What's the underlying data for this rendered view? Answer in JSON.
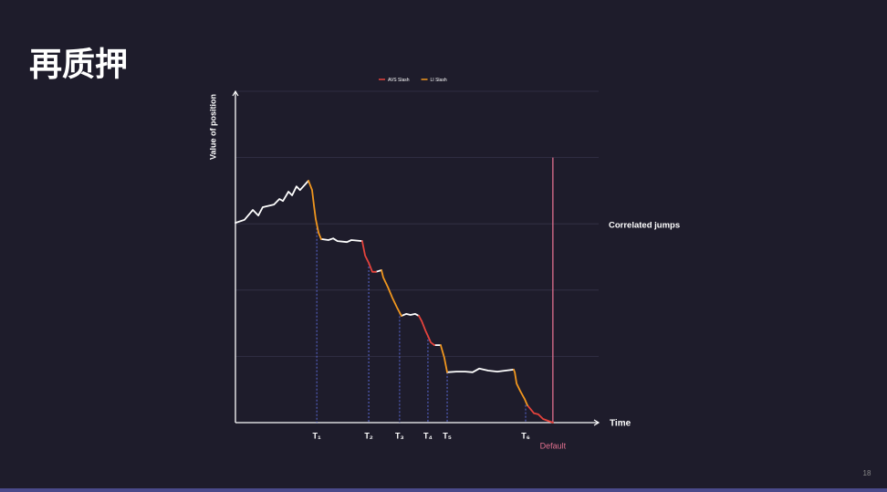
{
  "header": {
    "title": "再质押",
    "page_number": "18"
  },
  "chart_data": {
    "type": "line",
    "legend": "top",
    "y_label": "Value of position",
    "x_label": "Time",
    "annotation": "Correlated jumps",
    "xlim": [
      0,
      100
    ],
    "ylim": [
      0,
      100
    ],
    "yticks": [
      0,
      20,
      40,
      60,
      80,
      100
    ],
    "grid": true,
    "x": [
      0,
      2.5,
      4.8,
      6.3,
      7.5,
      10.6,
      12.1,
      13.1,
      14.6,
      15.6,
      16.8,
      17.8,
      20.1,
      21.1,
      21.6,
      22.1,
      22.9,
      23.6,
      25.6,
      26.9,
      28.1,
      30.7,
      31.9,
      34.9,
      35.7,
      36.7,
      37.7,
      38.7,
      40.2,
      40.7,
      42.0,
      43.2,
      44.5,
      45.7,
      47.0,
      48.2,
      49.5,
      50.5,
      51.3,
      52.3,
      53.0,
      53.8,
      54.8,
      56.5,
      57.5,
      58.3,
      60.8,
      63.3,
      65.3,
      67.1,
      69.6,
      72.1,
      76.6,
      76.9,
      77.4,
      78.4,
      79.6,
      80.4,
      82.2,
      83.4,
      84.7,
      87.4
    ],
    "series": [
      {
        "color": "#ffffff",
        "values": [
          60.3,
          61.2,
          64.2,
          62.5,
          65.0,
          65.8,
          67.5,
          66.9,
          69.7,
          68.6,
          71.3,
          70.2,
          73.0,
          null,
          null,
          null,
          null,
          55.4,
          55.1,
          55.6,
          54.8,
          54.5,
          55.1,
          54.8,
          null,
          null,
          null,
          45.5,
          46.0,
          null,
          null,
          null,
          null,
          32.2,
          32.8,
          32.5,
          32.8,
          32.2,
          null,
          null,
          null,
          null,
          23.4,
          23.4,
          null,
          15.2,
          15.4,
          15.4,
          15.2,
          16.3,
          15.7,
          15.4,
          16.0,
          null,
          null,
          null,
          null,
          null,
          null,
          null,
          null,
          null
        ]
      },
      {
        "name": "AVS Slash",
        "color": "#e5433c",
        "values": [
          null,
          null,
          null,
          null,
          null,
          null,
          null,
          null,
          null,
          null,
          null,
          null,
          null,
          null,
          null,
          null,
          null,
          null,
          null,
          null,
          null,
          null,
          null,
          54.8,
          50.4,
          48.2,
          45.5,
          45.5,
          null,
          null,
          null,
          null,
          null,
          null,
          null,
          null,
          null,
          32.2,
          30.6,
          27.8,
          26.2,
          24.2,
          23.4,
          null,
          null,
          null,
          null,
          null,
          null,
          null,
          null,
          null,
          null,
          null,
          null,
          null,
          null,
          5.2,
          2.8,
          2.5,
          1.1,
          0
        ]
      },
      {
        "name": "LI Slash",
        "color": "#f0961e",
        "values": [
          null,
          null,
          null,
          null,
          null,
          null,
          null,
          null,
          null,
          null,
          null,
          null,
          73.0,
          70.2,
          65.6,
          61.4,
          57.3,
          55.4,
          null,
          null,
          null,
          null,
          null,
          null,
          null,
          null,
          null,
          null,
          46.0,
          43.8,
          40.8,
          37.7,
          34.7,
          32.2,
          null,
          null,
          null,
          null,
          null,
          null,
          null,
          null,
          null,
          23.4,
          19.6,
          15.2,
          null,
          null,
          null,
          null,
          null,
          null,
          16.0,
          15.2,
          11.8,
          9.6,
          7.2,
          5.2,
          null,
          null,
          null,
          null
        ]
      }
    ],
    "events": [
      {
        "x": 22.4,
        "label": "T₁"
      },
      {
        "x": 36.7,
        "label": "T₂"
      },
      {
        "x": 45.2,
        "label": "T₃"
      },
      {
        "x": 53.0,
        "label": "T₄"
      },
      {
        "x": 58.3,
        "label": "T₅"
      },
      {
        "x": 79.9,
        "label": "T₆"
      }
    ],
    "event_color": "#5b6ad8",
    "default_marker": {
      "x": 87.4,
      "top": 80,
      "label": "Default",
      "color": "#e0708e"
    }
  }
}
